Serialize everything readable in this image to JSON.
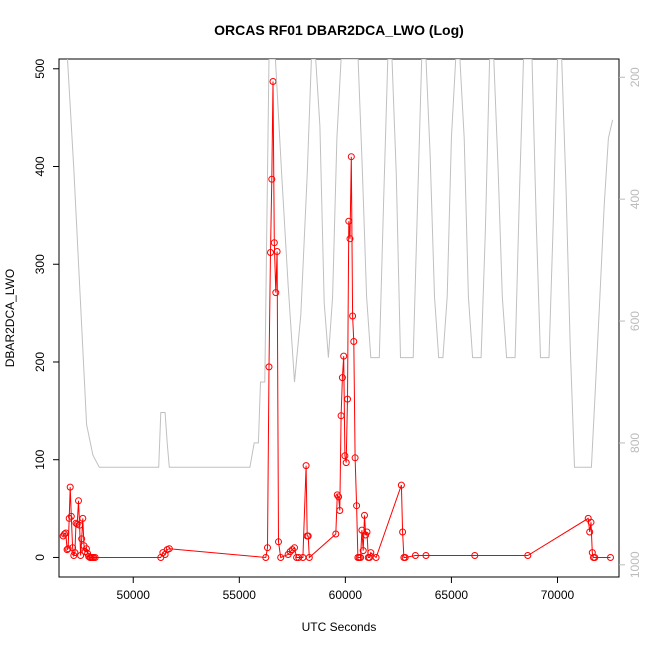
{
  "chart_data": {
    "type": "line",
    "title": "ORCAS RF01 DBAR2DCA_LWO (Log)",
    "xlabel": "UTC Seconds",
    "ylabel": "DBAR2DCA_LWO",
    "xlim": [
      46500,
      72900
    ],
    "ylim": [
      -20,
      510
    ],
    "y2lim": [
      1020,
      170
    ],
    "x_ticks": [
      50000,
      55000,
      60000,
      65000,
      70000
    ],
    "x_tick_labels": [
      "50000",
      "55000",
      "60000",
      "65000",
      "70000"
    ],
    "y_ticks": [
      0,
      100,
      200,
      300,
      400,
      500
    ],
    "y_tick_labels": [
      "0",
      "100",
      "200",
      "300",
      "400",
      "500"
    ],
    "y2_ticks": [
      200,
      400,
      600,
      800,
      1000
    ],
    "y2_tick_labels": [
      "200",
      "400",
      "600",
      "800",
      "1000"
    ],
    "colors": {
      "primary": "#ff0000",
      "secondary": "#c0c0c0"
    },
    "series": [
      {
        "axis": "left",
        "style": "line+circles",
        "color": "#ff0000",
        "x": [
          46700,
          46760,
          46820,
          46880,
          46930,
          46980,
          47030,
          47080,
          47140,
          47200,
          47250,
          47300,
          47360,
          47420,
          47470,
          47520,
          47570,
          47620,
          47680,
          47730,
          47790,
          47850,
          47900,
          47960,
          48010,
          48070,
          48130,
          48200,
          51300,
          51400,
          51500,
          51600,
          51700,
          56250,
          56330,
          56400,
          56470,
          56530,
          56590,
          56650,
          56720,
          56780,
          56850,
          56950,
          57300,
          57400,
          57500,
          57600,
          57700,
          57800,
          58000,
          58150,
          58200,
          58250,
          58300,
          59550,
          59620,
          59680,
          59740,
          59800,
          59860,
          59920,
          59980,
          60040,
          60100,
          60160,
          60220,
          60280,
          60340,
          60400,
          60460,
          60530,
          60590,
          60650,
          60720,
          60780,
          60840,
          60900,
          60960,
          61020,
          61080,
          61140,
          61200,
          61450,
          62640,
          62700,
          62760,
          62820,
          63300,
          63800,
          66100,
          68600,
          71450,
          71520,
          71580,
          71640,
          71700,
          71760,
          72500
        ],
        "y": [
          22,
          24,
          25,
          8,
          9,
          40,
          72,
          42,
          10,
          2,
          5,
          35,
          34,
          58,
          33,
          2,
          19,
          40,
          12,
          6,
          9,
          4,
          1,
          0,
          0,
          0,
          0,
          0,
          0,
          5,
          3,
          8,
          9,
          0,
          10,
          195,
          312,
          387,
          487,
          322,
          271,
          313,
          16,
          0,
          3,
          6,
          8,
          10,
          0,
          0,
          0,
          94,
          22,
          22,
          0,
          24,
          64,
          62,
          48,
          145,
          184,
          206,
          104,
          97,
          162,
          344,
          326,
          410,
          247,
          221,
          102,
          53,
          0,
          0,
          0,
          28,
          7,
          43,
          23,
          26,
          0,
          0,
          5,
          0,
          74,
          26,
          0,
          0,
          2,
          2,
          2,
          2,
          40,
          26,
          36,
          5,
          0,
          0,
          0
        ]
      },
      {
        "axis": "right",
        "style": "line",
        "color": "#c0c0c0",
        "x": [
          46900,
          47200,
          47500,
          47800,
          48100,
          48400,
          48700,
          49200,
          50500,
          51000,
          51200,
          51300,
          51400,
          51500,
          51600,
          51700,
          52000,
          53000,
          54000,
          55000,
          55300,
          55500,
          55700,
          55900,
          56000,
          56200,
          56400,
          56600,
          56700,
          57000,
          57300,
          57600,
          57900,
          58200,
          58400,
          58600,
          58800,
          59000,
          59200,
          59400,
          59600,
          59800,
          60000,
          60200,
          60400,
          60600,
          60800,
          61000,
          61200,
          61400,
          61500,
          61600,
          61800,
          62000,
          62200,
          62400,
          62600,
          62800,
          63000,
          63200,
          63400,
          63600,
          63800,
          64000,
          64200,
          64400,
          64600,
          64800,
          65000,
          65200,
          65400,
          65600,
          65800,
          66000,
          66200,
          66400,
          66600,
          66800,
          67000,
          67200,
          67400,
          67600,
          67800,
          68000,
          68200,
          68400,
          68600,
          68800,
          69000,
          69200,
          69400,
          69600,
          69800,
          70000,
          70200,
          70400,
          70600,
          70800,
          71000,
          71200,
          71400,
          71600,
          71800,
          72000,
          72200,
          72400,
          72600
        ],
        "y": [
          170,
          350,
          560,
          770,
          820,
          840,
          840,
          840,
          840,
          840,
          840,
          750,
          750,
          750,
          800,
          840,
          840,
          840,
          840,
          840,
          840,
          840,
          800,
          800,
          700,
          700,
          170,
          170,
          170,
          360,
          540,
          700,
          590,
          360,
          170,
          170,
          280,
          570,
          660,
          560,
          300,
          170,
          170,
          170,
          170,
          170,
          350,
          560,
          660,
          660,
          660,
          660,
          410,
          170,
          170,
          360,
          660,
          660,
          660,
          660,
          410,
          170,
          170,
          330,
          560,
          660,
          660,
          560,
          300,
          170,
          170,
          300,
          560,
          660,
          660,
          660,
          450,
          170,
          170,
          350,
          560,
          660,
          660,
          660,
          400,
          170,
          170,
          170,
          440,
          660,
          660,
          660,
          440,
          170,
          170,
          380,
          640,
          840,
          840,
          840,
          840,
          840,
          700,
          560,
          410,
          300,
          270
        ]
      }
    ]
  }
}
